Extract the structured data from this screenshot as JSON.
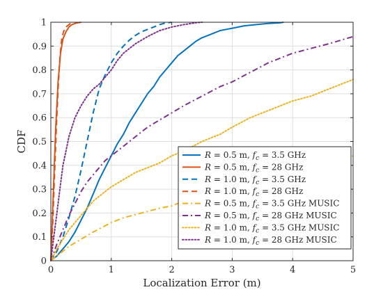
{
  "chart_data": {
    "type": "line",
    "title": "",
    "xlabel": "Localization Error (m)",
    "ylabel": "CDF",
    "xlim": [
      0,
      5
    ],
    "ylim": [
      0,
      1
    ],
    "xticks": [
      "0",
      "1",
      "2",
      "3",
      "4",
      "5"
    ],
    "yticks": [
      "0",
      "0.1",
      "0.2",
      "0.3",
      "0.4",
      "0.5",
      "0.6",
      "0.7",
      "0.8",
      "0.9",
      "1"
    ],
    "grid": true,
    "legend_position": "bottom-right",
    "series": [
      {
        "name": "R = 0.5 m, f_c = 3.5 GHz",
        "legend_parts": [
          "R",
          " = 0.5 m, ",
          "f",
          "c",
          " = 3.5 GHz"
        ],
        "color": "#0072BD",
        "style": "solid",
        "x": [
          0,
          0.1,
          0.2,
          0.3,
          0.4,
          0.5,
          0.6,
          0.7,
          0.8,
          0.9,
          1.0,
          1.1,
          1.2,
          1.3,
          1.4,
          1.5,
          1.6,
          1.7,
          1.8,
          1.9,
          2.0,
          2.1,
          2.2,
          2.3,
          2.4,
          2.5,
          2.6,
          2.7,
          2.8,
          2.9,
          3.0,
          3.2,
          3.4,
          3.6,
          3.8,
          3.85
        ],
        "y": [
          0,
          0.02,
          0.05,
          0.08,
          0.12,
          0.17,
          0.22,
          0.28,
          0.34,
          0.39,
          0.44,
          0.49,
          0.53,
          0.58,
          0.62,
          0.66,
          0.7,
          0.73,
          0.77,
          0.8,
          0.83,
          0.86,
          0.88,
          0.9,
          0.92,
          0.935,
          0.945,
          0.955,
          0.965,
          0.97,
          0.975,
          0.985,
          0.99,
          0.995,
          0.998,
          1.0
        ]
      },
      {
        "name": "R = 0.5 m, f_c = 28 GHz",
        "legend_parts": [
          "R",
          " = 0.5 m, ",
          "f",
          "c",
          " = 28 GHz"
        ],
        "color": "#D95319",
        "style": "solid",
        "x": [
          0,
          0.04,
          0.08,
          0.12,
          0.16,
          0.2,
          0.25,
          0.3,
          0.35,
          0.4,
          0.45,
          0.5
        ],
        "y": [
          0,
          0.28,
          0.55,
          0.75,
          0.87,
          0.93,
          0.96,
          0.98,
          0.99,
          0.995,
          0.998,
          1.0
        ]
      },
      {
        "name": "R = 1.0 m, f_c = 3.5 GHz",
        "legend_parts": [
          "R",
          " = 1.0 m, ",
          "f",
          "c",
          " = 3.5 GHz"
        ],
        "color": "#0072BD",
        "style": "dashed",
        "x": [
          0,
          0.1,
          0.2,
          0.3,
          0.4,
          0.5,
          0.6,
          0.7,
          0.8,
          0.9,
          1.0,
          1.1,
          1.2,
          1.3,
          1.4,
          1.5,
          1.6,
          1.7,
          1.8,
          1.9,
          2.0
        ],
        "y": [
          0,
          0.04,
          0.1,
          0.18,
          0.27,
          0.38,
          0.5,
          0.62,
          0.72,
          0.78,
          0.83,
          0.87,
          0.9,
          0.925,
          0.945,
          0.96,
          0.97,
          0.98,
          0.99,
          0.997,
          1.0
        ]
      },
      {
        "name": "R = 1.0 m, f_c = 28 GHz",
        "legend_parts": [
          "R",
          " = 1.0 m, ",
          "f",
          "c",
          " = 28 GHz"
        ],
        "color": "#D95319",
        "style": "dashed",
        "x": [
          0,
          0.03,
          0.06,
          0.09,
          0.12,
          0.15,
          0.18,
          0.21,
          0.25,
          0.3,
          0.35
        ],
        "y": [
          0,
          0.15,
          0.35,
          0.55,
          0.72,
          0.85,
          0.93,
          0.96,
          0.98,
          0.99,
          1.0
        ]
      },
      {
        "name": "R = 0.5 m, f_c = 3.5 GHz MUSIC",
        "legend_parts": [
          "R",
          " = 0.5 m, ",
          "f",
          "c",
          " = 3.5 GHz MUSIC"
        ],
        "color": "#EDB120",
        "style": "dashdot",
        "x": [
          0,
          0.1,
          0.2,
          0.3,
          0.5,
          0.7,
          1.0,
          1.2,
          1.5,
          1.8,
          2.0,
          2.2,
          2.5,
          2.8,
          3.0,
          3.3,
          3.6,
          4.0,
          4.3,
          4.6,
          5.0
        ],
        "y": [
          0,
          0.02,
          0.04,
          0.06,
          0.09,
          0.12,
          0.16,
          0.18,
          0.2,
          0.22,
          0.23,
          0.25,
          0.27,
          0.29,
          0.3,
          0.32,
          0.34,
          0.37,
          0.39,
          0.41,
          0.44
        ]
      },
      {
        "name": "R = 0.5 m, f_c = 28 GHz MUSIC",
        "legend_parts": [
          "R",
          " = 0.5 m, ",
          "f",
          "c",
          " = 28 GHz MUSIC"
        ],
        "color": "#7E2F8E",
        "style": "dashdot",
        "x": [
          0,
          0.1,
          0.2,
          0.3,
          0.4,
          0.5,
          0.6,
          0.7,
          0.8,
          0.9,
          1.0,
          1.2,
          1.4,
          1.6,
          1.8,
          2.0,
          2.2,
          2.5,
          2.8,
          3.0,
          3.3,
          3.6,
          4.0,
          4.3,
          4.6,
          5.0
        ],
        "y": [
          0,
          0.07,
          0.13,
          0.19,
          0.24,
          0.29,
          0.33,
          0.36,
          0.39,
          0.42,
          0.44,
          0.48,
          0.52,
          0.56,
          0.59,
          0.62,
          0.65,
          0.69,
          0.73,
          0.75,
          0.79,
          0.83,
          0.87,
          0.89,
          0.91,
          0.94
        ]
      },
      {
        "name": "R = 1.0 m, f_c = 3.5 GHz MUSIC",
        "legend_parts": [
          "R",
          " = 1.0 m, ",
          "f",
          "c",
          " = 3.5 GHz MUSIC"
        ],
        "color": "#EDB120",
        "style": "dotted",
        "x": [
          0,
          0.1,
          0.2,
          0.3,
          0.4,
          0.5,
          0.6,
          0.7,
          0.8,
          0.9,
          1.0,
          1.2,
          1.4,
          1.6,
          1.8,
          2.0,
          2.2,
          2.5,
          2.8,
          3.0,
          3.3,
          3.6,
          4.0,
          4.3,
          4.6,
          5.0
        ],
        "y": [
          0,
          0.05,
          0.09,
          0.13,
          0.16,
          0.19,
          0.22,
          0.25,
          0.27,
          0.29,
          0.31,
          0.34,
          0.37,
          0.39,
          0.41,
          0.44,
          0.46,
          0.5,
          0.53,
          0.56,
          0.6,
          0.63,
          0.67,
          0.69,
          0.72,
          0.76
        ]
      },
      {
        "name": "R = 1.0 m, f_c = 28 GHz MUSIC",
        "legend_parts": [
          "R",
          " = 1.0 m, ",
          "f",
          "c",
          " = 28 GHz MUSIC"
        ],
        "color": "#7E2F8E",
        "style": "dotted",
        "x": [
          0,
          0.05,
          0.1,
          0.15,
          0.2,
          0.3,
          0.4,
          0.5,
          0.6,
          0.7,
          0.8,
          0.9,
          1.0,
          1.1,
          1.2,
          1.4,
          1.6,
          1.8,
          2.0,
          2.2,
          2.4,
          2.5
        ],
        "y": [
          0,
          0.1,
          0.2,
          0.3,
          0.4,
          0.52,
          0.6,
          0.65,
          0.69,
          0.72,
          0.74,
          0.77,
          0.8,
          0.84,
          0.87,
          0.91,
          0.94,
          0.965,
          0.98,
          0.99,
          0.998,
          1.0
        ]
      }
    ]
  }
}
